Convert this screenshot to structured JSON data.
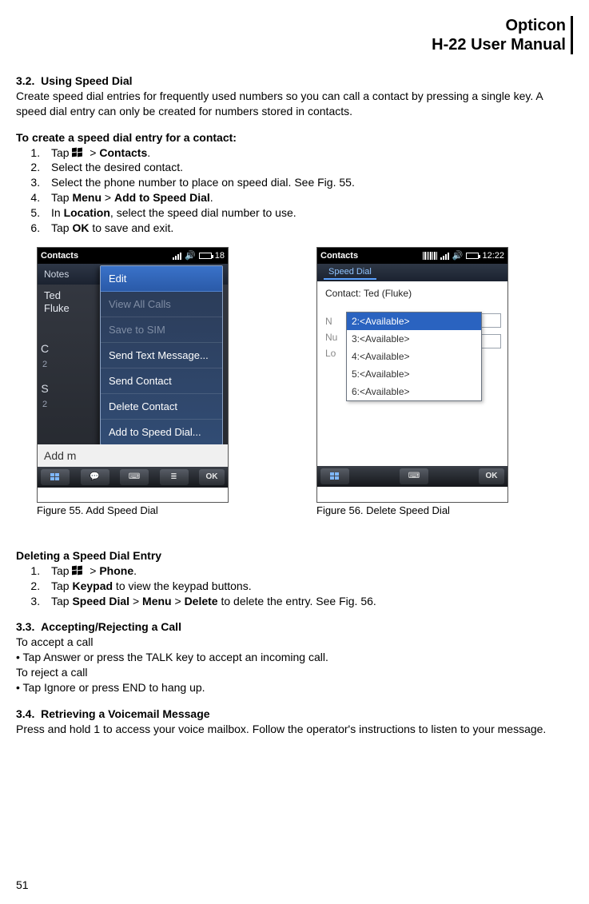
{
  "header": {
    "brand": "Opticon",
    "product": "H-22 User Manual"
  },
  "s32": {
    "num": "3.2.",
    "title": "Using Speed Dial",
    "intro": "Create speed dial entries for frequently used numbers so you can call a contact by pressing a single key. A speed dial entry can only be created for numbers stored in contacts.",
    "createHeading": "To create a speed dial entry for a contact:",
    "steps": [
      {
        "pre": "Tap ",
        "post": "> ",
        "boldPost": "Contacts",
        "tail": "."
      },
      {
        "text": "Select the desired contact."
      },
      {
        "text": "Select the phone number to place on speed dial. See ",
        "ref": "Fig. 55",
        "tail": "."
      },
      {
        "pre": "Tap ",
        "b1": "Menu",
        "sep": " > ",
        "b2": "Add to Speed Dial",
        "tail": "."
      },
      {
        "pre": "In ",
        "b1": "Location",
        "tail": ", select the speed dial number to use."
      },
      {
        "pre": "Tap ",
        "b1": "OK",
        "tail": " to save and exit."
      }
    ]
  },
  "fig55": {
    "caption": "Figure 55. Add Speed Dial",
    "statusTitle": "Contacts",
    "clock": "18",
    "tab": "Notes",
    "contactFirst": "Ted",
    "contactLast": "Fluke",
    "letterC": "C",
    "letter2": "2",
    "letterS": "S",
    "addMore": "Add m",
    "menu": [
      {
        "label": "Edit",
        "state": "sel"
      },
      {
        "label": "View All Calls",
        "state": "dis"
      },
      {
        "label": "Save to SIM",
        "state": "dis"
      },
      {
        "label": "Send Text Message...",
        "state": ""
      },
      {
        "label": "Send Contact",
        "state": ""
      },
      {
        "label": "Delete Contact",
        "state": ""
      },
      {
        "label": "Add to Speed Dial...",
        "state": ""
      }
    ],
    "okLabel": "OK"
  },
  "fig56": {
    "caption": "Figure 56. Delete Speed Dial",
    "statusTitle": "Contacts",
    "clock": "12:22",
    "tab": "Speed Dial",
    "contactLabel": "Contact:",
    "contactName": "Ted (Fluke)",
    "sideLabels": [
      "N",
      "Nu",
      "Lo"
    ],
    "options": [
      {
        "label": "2:<Available>",
        "state": "sel"
      },
      {
        "label": "3:<Available>",
        "state": ""
      },
      {
        "label": "4:<Available>",
        "state": ""
      },
      {
        "label": "5:<Available>",
        "state": ""
      },
      {
        "label": "6:<Available>",
        "state": ""
      }
    ],
    "okLabel": "OK"
  },
  "deleting": {
    "heading": "Deleting a Speed Dial Entry",
    "steps": [
      {
        "pre": "Tap ",
        "post": "> ",
        "boldPost": "Phone",
        "tail": "."
      },
      {
        "pre": "Tap ",
        "b1": "Keypad",
        "tail": " to view the keypad buttons."
      },
      {
        "pre": "Tap ",
        "b1": "Speed Dial",
        "sep": " > ",
        "b2": "Menu",
        "sep2": " > ",
        "b3": "Delete",
        "tail": " to delete the entry. See ",
        "ref": "Fig. 56",
        "tail2": "."
      }
    ]
  },
  "s33": {
    "num": "3.3.",
    "title": "Accepting/Rejecting a Call",
    "lines": [
      "To accept a call",
      "• Tap Answer or press the TALK key to accept an incoming call.",
      "To reject a call",
      "• Tap Ignore or press END to hang up."
    ]
  },
  "s34": {
    "num": "3.4.",
    "title": "Retrieving a Voicemail Message",
    "body": "Press and hold 1 to access your voice mailbox. Follow the operator's instructions to listen to your message."
  },
  "pageNumber": "51"
}
